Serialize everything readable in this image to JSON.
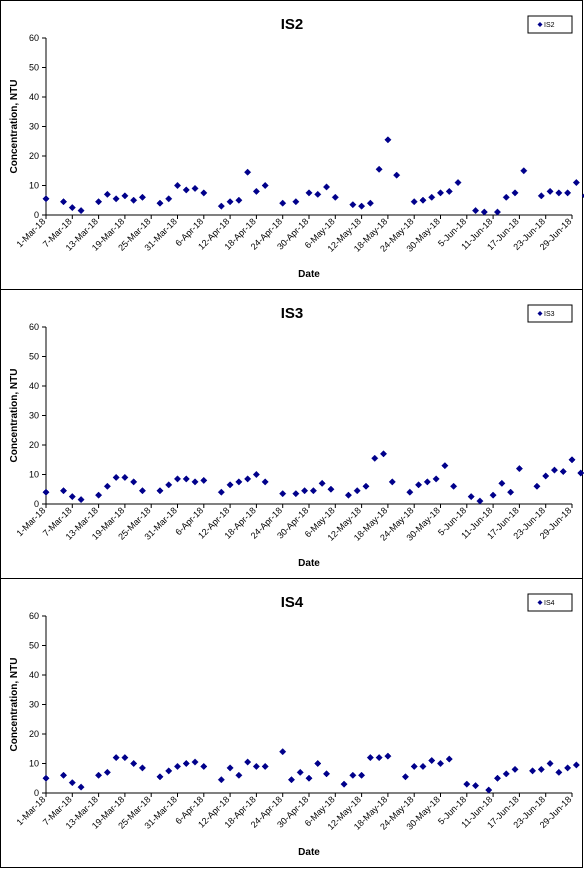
{
  "chart_data": [
    {
      "type": "scatter",
      "title": "IS2",
      "xlabel": "Date",
      "ylabel": "Concentration, NTU",
      "ylim": [
        0,
        60
      ],
      "yticks": [
        "0",
        "10",
        "20",
        "30",
        "40",
        "50",
        "60"
      ],
      "xticks": [
        "1-Mar-18",
        "7-Mar-18",
        "13-Mar-18",
        "19-Mar-18",
        "25-Mar-18",
        "31-Mar-18",
        "6-Apr-18",
        "12-Apr-18",
        "18-Apr-18",
        "24-Apr-18",
        "30-Apr-18",
        "6-May-18",
        "12-May-18",
        "18-May-18",
        "24-May-18",
        "30-May-18",
        "5-Jun-18",
        "11-Jun-18",
        "17-Jun-18",
        "23-Jun-18",
        "29-Jun-18"
      ],
      "legend_position": "top-right",
      "grid": false,
      "marker_color": "#00008B",
      "series": [
        {
          "name": "IS2",
          "points": [
            [
              "1-Mar-18",
              5.5
            ],
            [
              "5-Mar-18",
              4.5
            ],
            [
              "7-Mar-18",
              2.5
            ],
            [
              "9-Mar-18",
              1.5
            ],
            [
              "13-Mar-18",
              4.5
            ],
            [
              "15-Mar-18",
              7
            ],
            [
              "17-Mar-18",
              5.5
            ],
            [
              "19-Mar-18",
              6.5
            ],
            [
              "21-Mar-18",
              5
            ],
            [
              "23-Mar-18",
              6
            ],
            [
              "27-Mar-18",
              4
            ],
            [
              "29-Mar-18",
              5.5
            ],
            [
              "31-Mar-18",
              10
            ],
            [
              "2-Apr-18",
              8.5
            ],
            [
              "4-Apr-18",
              9
            ],
            [
              "6-Apr-18",
              7.5
            ],
            [
              "10-Apr-18",
              3
            ],
            [
              "12-Apr-18",
              4.5
            ],
            [
              "14-Apr-18",
              5
            ],
            [
              "16-Apr-18",
              14.5
            ],
            [
              "18-Apr-18",
              8
            ],
            [
              "20-Apr-18",
              10
            ],
            [
              "24-Apr-18",
              4
            ],
            [
              "27-Apr-18",
              4.5
            ],
            [
              "30-Apr-18",
              7.5
            ],
            [
              "2-May-18",
              7
            ],
            [
              "4-May-18",
              9.5
            ],
            [
              "6-May-18",
              6
            ],
            [
              "10-May-18",
              3.5
            ],
            [
              "12-May-18",
              3
            ],
            [
              "14-May-18",
              4
            ],
            [
              "16-May-18",
              15.5
            ],
            [
              "18-May-18",
              25.5
            ],
            [
              "20-May-18",
              13.5
            ],
            [
              "24-May-18",
              4.5
            ],
            [
              "26-May-18",
              5
            ],
            [
              "28-May-18",
              6
            ],
            [
              "30-May-18",
              7.5
            ],
            [
              "1-Jun-18",
              8
            ],
            [
              "3-Jun-18",
              11
            ],
            [
              "7-Jun-18",
              1.5
            ],
            [
              "9-Jun-18",
              1
            ],
            [
              "12-Jun-18",
              1
            ],
            [
              "14-Jun-18",
              6
            ],
            [
              "16-Jun-18",
              7.5
            ],
            [
              "18-Jun-18",
              15
            ],
            [
              "22-Jun-18",
              6.5
            ],
            [
              "24-Jun-18",
              8
            ],
            [
              "26-Jun-18",
              7.5
            ],
            [
              "28-Jun-18",
              7.5
            ],
            [
              "30-Jun-18",
              11
            ],
            [
              "2-Jul-18",
              6.5
            ]
          ]
        }
      ]
    },
    {
      "type": "scatter",
      "title": "IS3",
      "xlabel": "Date",
      "ylabel": "Concentration, NTU",
      "ylim": [
        0,
        60
      ],
      "yticks": [
        "0",
        "10",
        "20",
        "30",
        "40",
        "50",
        "60"
      ],
      "xticks": [
        "1-Mar-18",
        "7-Mar-18",
        "13-Mar-18",
        "19-Mar-18",
        "25-Mar-18",
        "31-Mar-18",
        "6-Apr-18",
        "12-Apr-18",
        "18-Apr-18",
        "24-Apr-18",
        "30-Apr-18",
        "6-May-18",
        "12-May-18",
        "18-May-18",
        "24-May-18",
        "30-May-18",
        "5-Jun-18",
        "11-Jun-18",
        "17-Jun-18",
        "23-Jun-18",
        "29-Jun-18"
      ],
      "legend_position": "top-right",
      "grid": false,
      "marker_color": "#00008B",
      "series": [
        {
          "name": "IS3",
          "points": [
            [
              "1-Mar-18",
              4
            ],
            [
              "5-Mar-18",
              4.5
            ],
            [
              "7-Mar-18",
              2.5
            ],
            [
              "9-Mar-18",
              1.5
            ],
            [
              "13-Mar-18",
              3
            ],
            [
              "15-Mar-18",
              6
            ],
            [
              "17-Mar-18",
              9
            ],
            [
              "19-Mar-18",
              9
            ],
            [
              "21-Mar-18",
              7.5
            ],
            [
              "23-Mar-18",
              4.5
            ],
            [
              "27-Mar-18",
              4.5
            ],
            [
              "29-Mar-18",
              6.5
            ],
            [
              "31-Mar-18",
              8.5
            ],
            [
              "2-Apr-18",
              8.5
            ],
            [
              "4-Apr-18",
              7.5
            ],
            [
              "6-Apr-18",
              8
            ],
            [
              "10-Apr-18",
              4
            ],
            [
              "12-Apr-18",
              6.5
            ],
            [
              "14-Apr-18",
              7.5
            ],
            [
              "16-Apr-18",
              8.5
            ],
            [
              "18-Apr-18",
              10
            ],
            [
              "20-Apr-18",
              7.5
            ],
            [
              "24-Apr-18",
              3.5
            ],
            [
              "27-Apr-18",
              3.5
            ],
            [
              "29-Apr-18",
              4.5
            ],
            [
              "1-May-18",
              4.5
            ],
            [
              "3-May-18",
              7
            ],
            [
              "5-May-18",
              5
            ],
            [
              "9-May-18",
              3
            ],
            [
              "11-May-18",
              4.5
            ],
            [
              "13-May-18",
              6
            ],
            [
              "15-May-18",
              15.5
            ],
            [
              "17-May-18",
              17
            ],
            [
              "19-May-18",
              7.5
            ],
            [
              "23-May-18",
              4
            ],
            [
              "25-May-18",
              6.5
            ],
            [
              "27-May-18",
              7.5
            ],
            [
              "29-May-18",
              8.5
            ],
            [
              "31-May-18",
              13
            ],
            [
              "2-Jun-18",
              6
            ],
            [
              "6-Jun-18",
              2.5
            ],
            [
              "8-Jun-18",
              1
            ],
            [
              "11-Jun-18",
              3
            ],
            [
              "13-Jun-18",
              7
            ],
            [
              "15-Jun-18",
              4
            ],
            [
              "17-Jun-18",
              12
            ],
            [
              "21-Jun-18",
              6
            ],
            [
              "23-Jun-18",
              9.5
            ],
            [
              "25-Jun-18",
              11.5
            ],
            [
              "27-Jun-18",
              11
            ],
            [
              "29-Jun-18",
              15
            ],
            [
              "1-Jul-18",
              10.5
            ]
          ]
        }
      ]
    },
    {
      "type": "scatter",
      "title": "IS4",
      "xlabel": "Date",
      "ylabel": "Concentration, NTU",
      "ylim": [
        0,
        60
      ],
      "yticks": [
        "0",
        "10",
        "20",
        "30",
        "40",
        "50",
        "60"
      ],
      "xticks": [
        "1-Mar-18",
        "7-Mar-18",
        "13-Mar-18",
        "19-Mar-18",
        "25-Mar-18",
        "31-Mar-18",
        "6-Apr-18",
        "12-Apr-18",
        "18-Apr-18",
        "24-Apr-18",
        "30-Apr-18",
        "6-May-18",
        "12-May-18",
        "18-May-18",
        "24-May-18",
        "30-May-18",
        "5-Jun-18",
        "11-Jun-18",
        "17-Jun-18",
        "23-Jun-18",
        "29-Jun-18"
      ],
      "legend_position": "top-right",
      "grid": false,
      "marker_color": "#00008B",
      "series": [
        {
          "name": "IS4",
          "points": [
            [
              "1-Mar-18",
              5
            ],
            [
              "5-Mar-18",
              6
            ],
            [
              "7-Mar-18",
              3.5
            ],
            [
              "9-Mar-18",
              2
            ],
            [
              "13-Mar-18",
              6
            ],
            [
              "15-Mar-18",
              7
            ],
            [
              "17-Mar-18",
              12
            ],
            [
              "19-Mar-18",
              12
            ],
            [
              "21-Mar-18",
              10
            ],
            [
              "23-Mar-18",
              8.5
            ],
            [
              "27-Mar-18",
              5.5
            ],
            [
              "29-Mar-18",
              7.5
            ],
            [
              "31-Mar-18",
              9
            ],
            [
              "2-Apr-18",
              10
            ],
            [
              "4-Apr-18",
              10.5
            ],
            [
              "6-Apr-18",
              9
            ],
            [
              "10-Apr-18",
              4.5
            ],
            [
              "12-Apr-18",
              8.5
            ],
            [
              "14-Apr-18",
              6
            ],
            [
              "16-Apr-18",
              10.5
            ],
            [
              "18-Apr-18",
              9
            ],
            [
              "20-Apr-18",
              9
            ],
            [
              "24-Apr-18",
              14
            ],
            [
              "26-Apr-18",
              4.5
            ],
            [
              "28-Apr-18",
              7
            ],
            [
              "30-Apr-18",
              5
            ],
            [
              "2-May-18",
              10
            ],
            [
              "4-May-18",
              6.5
            ],
            [
              "8-May-18",
              3
            ],
            [
              "10-May-18",
              6
            ],
            [
              "12-May-18",
              6
            ],
            [
              "14-May-18",
              12
            ],
            [
              "16-May-18",
              12
            ],
            [
              "18-May-18",
              12.5
            ],
            [
              "22-May-18",
              5.5
            ],
            [
              "24-May-18",
              9
            ],
            [
              "26-May-18",
              9
            ],
            [
              "28-May-18",
              11
            ],
            [
              "30-May-18",
              10
            ],
            [
              "1-Jun-18",
              11.5
            ],
            [
              "5-Jun-18",
              3
            ],
            [
              "7-Jun-18",
              2.5
            ],
            [
              "10-Jun-18",
              1
            ],
            [
              "12-Jun-18",
              5
            ],
            [
              "14-Jun-18",
              6.5
            ],
            [
              "16-Jun-18",
              8
            ],
            [
              "20-Jun-18",
              7.5
            ],
            [
              "22-Jun-18",
              8
            ],
            [
              "24-Jun-18",
              10
            ],
            [
              "26-Jun-18",
              7
            ],
            [
              "28-Jun-18",
              8.5
            ],
            [
              "30-Jun-18",
              9.5
            ]
          ]
        }
      ]
    }
  ]
}
